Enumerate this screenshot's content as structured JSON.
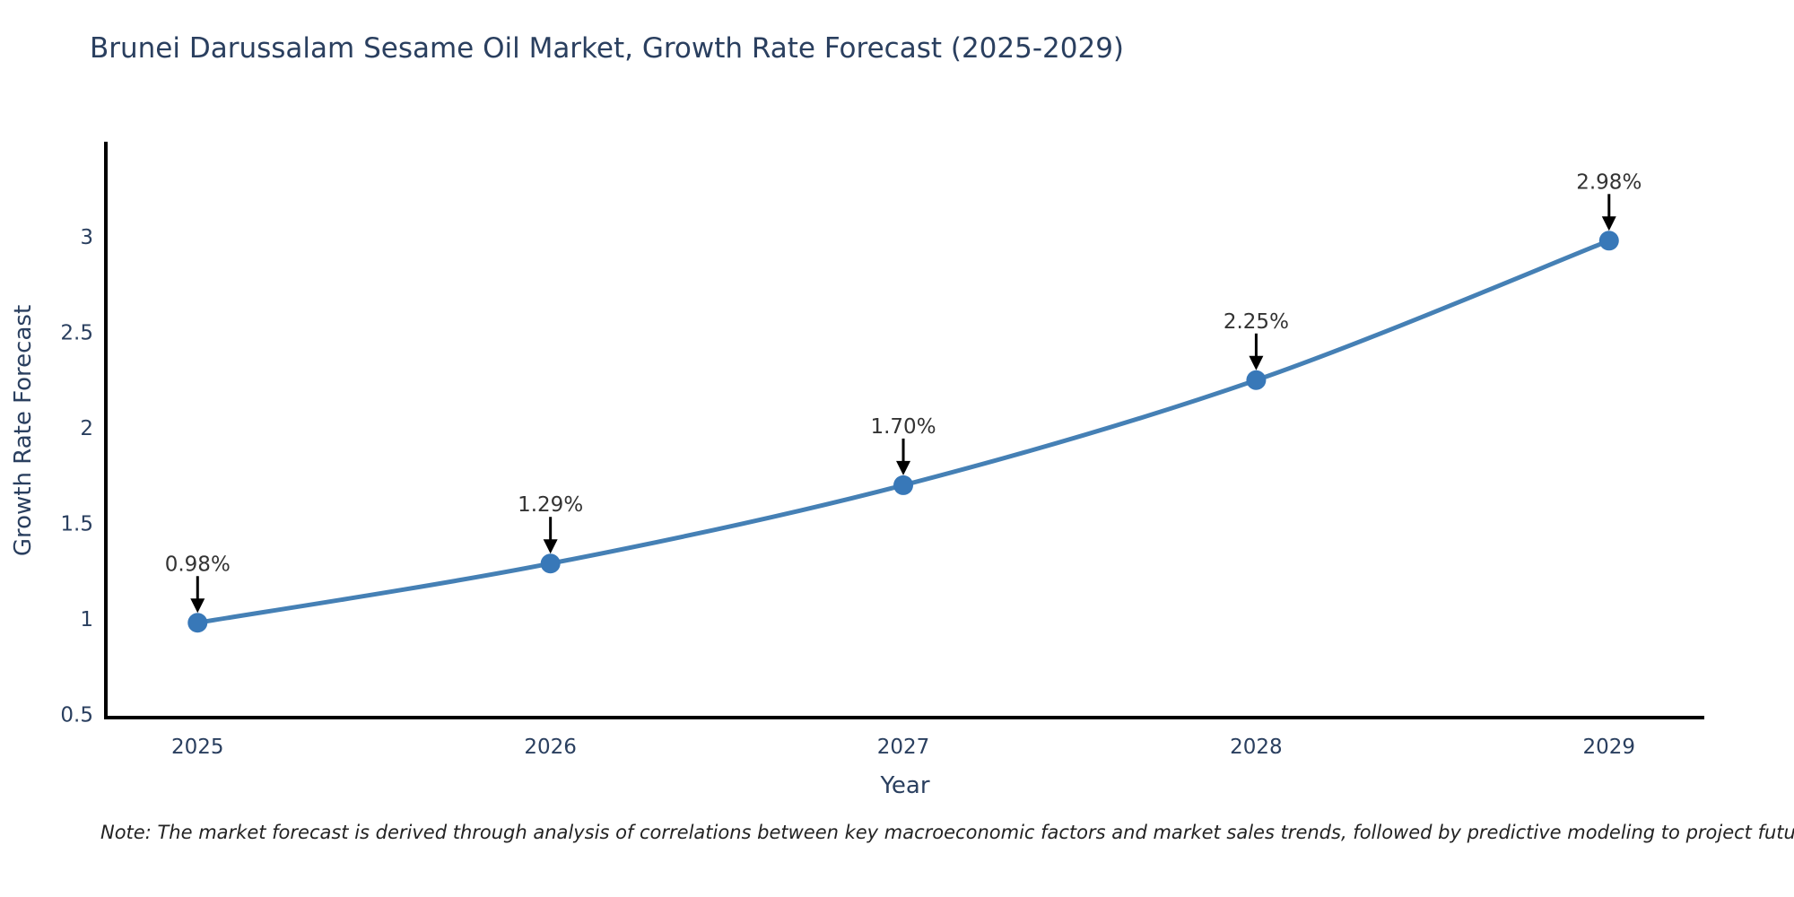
{
  "title": "Brunei Darussalam Sesame Oil Market, Growth Rate Forecast (2025-2029)",
  "note": "Note: The market forecast is derived through analysis of correlations between key macroeconomic factors and market sales trends, followed by predictive modeling to project future sales",
  "chart_data": {
    "type": "line",
    "title": "Brunei Darussalam Sesame Oil Market, Growth Rate Forecast (2025-2029)",
    "xlabel": "Year",
    "ylabel": "Growth Rate Forecast",
    "x": [
      2025,
      2026,
      2027,
      2028,
      2029
    ],
    "y": [
      0.98,
      1.29,
      1.7,
      2.25,
      2.98
    ],
    "point_labels": [
      "0.98%",
      "1.29%",
      "1.70%",
      "2.25%",
      "2.98%"
    ],
    "x_tick_values": [
      2025,
      2026,
      2027,
      2028,
      2029
    ],
    "x_tick_labels": [
      "2025",
      "2026",
      "2027",
      "2028",
      "2029"
    ],
    "y_tick_values": [
      0.5,
      1,
      1.5,
      2,
      2.5,
      3
    ],
    "y_tick_labels": [
      "0.5",
      "1",
      "1.5",
      "2",
      "2.5",
      "3"
    ],
    "xlim": [
      2024.74,
      2029.27
    ],
    "ylim": [
      0.4835,
      3.4885
    ],
    "grid": false,
    "legend": null,
    "line_shape": "spline",
    "line_color": "#4580b5",
    "marker_color": "#3878b8",
    "annotation_text_color": "#333333",
    "arrow_color": "#000000",
    "axis_line_color": "#000000",
    "text_color": "#2a3f5f",
    "background_color": "#ffffff"
  }
}
